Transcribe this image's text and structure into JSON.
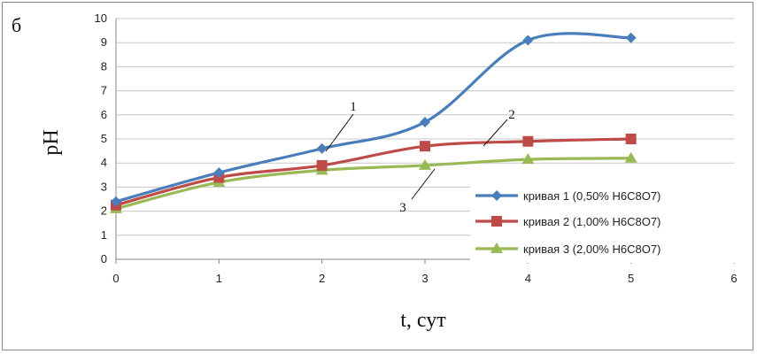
{
  "panel_label": "б",
  "chart_data": {
    "type": "line",
    "xlabel": "t, сут",
    "ylabel": "pH",
    "xlim": [
      0,
      6
    ],
    "ylim": [
      0,
      10
    ],
    "x_ticks": [
      "0",
      "1",
      "2",
      "3",
      "4",
      "5",
      "6"
    ],
    "y_ticks": [
      "0",
      "1",
      "2",
      "3",
      "4",
      "5",
      "6",
      "7",
      "8",
      "9",
      "10"
    ],
    "grid": true,
    "legend_position": "right",
    "series": [
      {
        "name": "кривая 1 (0,50% H6C8O7)",
        "color": "#4a7ebb",
        "marker": "diamond",
        "x": [
          0,
          1,
          2,
          3,
          4,
          5
        ],
        "y": [
          2.4,
          3.6,
          4.6,
          5.7,
          9.1,
          9.2
        ]
      },
      {
        "name": "кривая 2 (1,00% H6C8O7)",
        "color": "#be4b48",
        "marker": "square",
        "x": [
          0,
          1,
          2,
          3,
          4,
          5
        ],
        "y": [
          2.25,
          3.4,
          3.9,
          4.7,
          4.9,
          5.0
        ]
      },
      {
        "name": "кривая 3 (2,00% H6C8O7)",
        "color": "#98b954",
        "marker": "triangle",
        "x": [
          0,
          1,
          2,
          3,
          4,
          5
        ],
        "y": [
          2.1,
          3.2,
          3.7,
          3.9,
          4.15,
          4.2
        ]
      }
    ],
    "annotations": [
      {
        "text": "1",
        "series": 0
      },
      {
        "text": "2",
        "series": 1
      },
      {
        "text": "3",
        "series": 2
      }
    ]
  }
}
